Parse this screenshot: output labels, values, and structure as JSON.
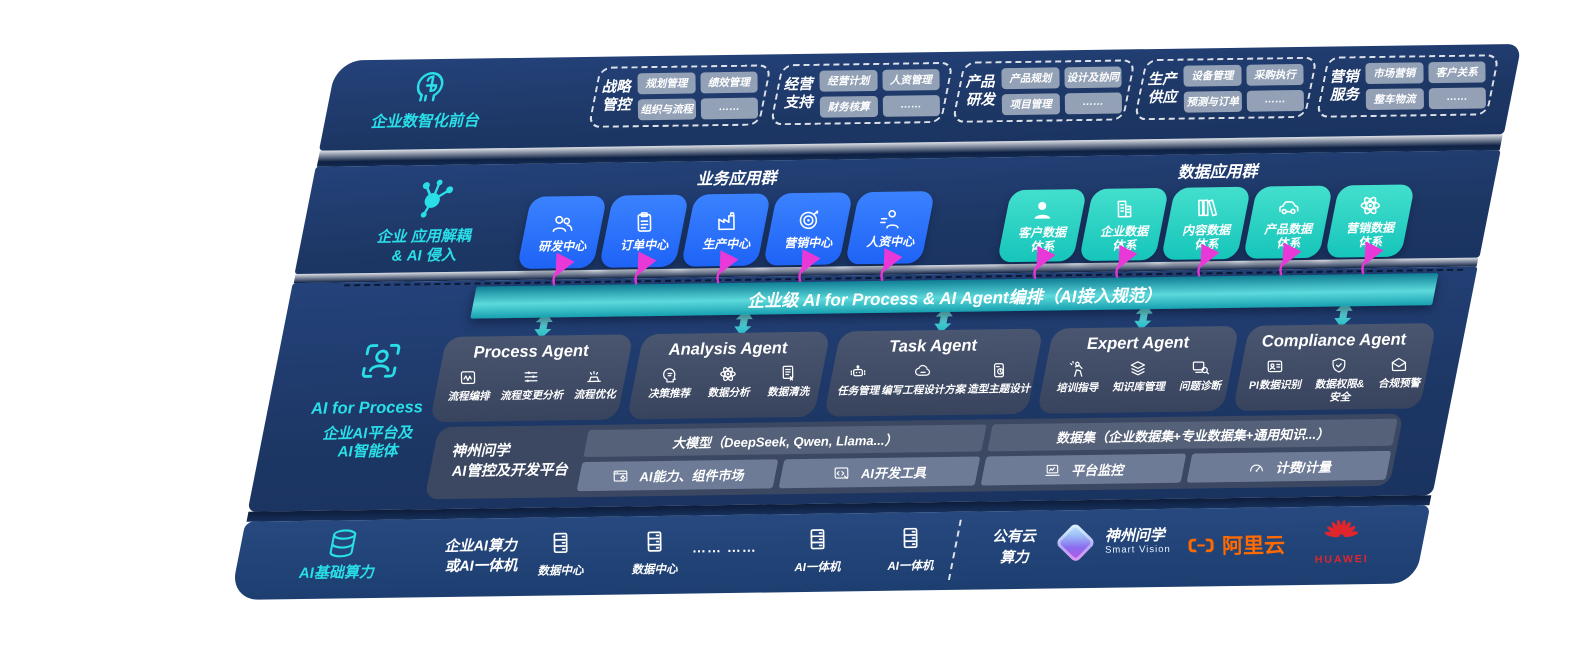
{
  "colors": {
    "panel_navy": "#1d3765",
    "infra_navy": "#1f4173",
    "accent_teal": "#2fd8cf",
    "rail_cyan": "#29dee7",
    "app_blue": "#2470fa",
    "data_teal": "#2ed3c6",
    "magenta": "#e838d8",
    "agent_slate": "#3f4b66",
    "aliyun_orange": "#ff6a00",
    "huawei_red": "#e0252c"
  },
  "rail": {
    "front_office": "企业数智化前台",
    "decouple_line1": "企业 应用解耦",
    "decouple_line2": "& AI 侵入",
    "aiprocess_en": "AI for Process",
    "aiprocess_line2": "企业AI平台及",
    "aiprocess_line3": "AI智能体",
    "compute": "AI基础算力"
  },
  "front_office_groups": [
    {
      "title_lines": [
        "战略",
        "管控"
      ],
      "items": [
        "规划管理",
        "绩效管理",
        "组织与流程",
        "……"
      ]
    },
    {
      "title_lines": [
        "经营",
        "支持"
      ],
      "items": [
        "经营计划",
        "人资管理",
        "财务核算",
        "……"
      ]
    },
    {
      "title_lines": [
        "产品",
        "研发"
      ],
      "items": [
        "产品规划",
        "设计及协同",
        "项目管理",
        "……"
      ]
    },
    {
      "title_lines": [
        "生产",
        "供应"
      ],
      "items": [
        "设备管理",
        "采购执行",
        "预测与订单",
        "……"
      ]
    },
    {
      "title_lines": [
        "营销",
        "服务"
      ],
      "items": [
        "市场营销",
        "客户关系",
        "整车物流",
        "……"
      ]
    }
  ],
  "app_cluster": {
    "title": "业务应用群",
    "boxes": [
      {
        "icon": "people-icon",
        "label": "研发中心"
      },
      {
        "icon": "clipboard-icon",
        "label": "订单中心"
      },
      {
        "icon": "factory-icon",
        "label": "生产中心"
      },
      {
        "icon": "target-icon",
        "label": "营销中心"
      },
      {
        "icon": "running-person-icon",
        "label": "人资中心"
      }
    ]
  },
  "data_cluster": {
    "title": "数据应用群",
    "boxes": [
      {
        "icon": "person-icon",
        "label": "客户数据 体系"
      },
      {
        "icon": "building-icon",
        "label": "企业数据 体系"
      },
      {
        "icon": "books-icon",
        "label": "内容数据 体系"
      },
      {
        "icon": "car-icon",
        "label": "产品数据 体系"
      },
      {
        "icon": "atom-icon",
        "label": "营销数据 体系"
      }
    ]
  },
  "orchestration_bar": "企业级 AI for Process & AI Agent编排（AI接入规范）",
  "agents": [
    {
      "title": "Process Agent",
      "items": [
        {
          "icon": "waveform-icon",
          "label": "流程编排"
        },
        {
          "icon": "flow-nodes-icon",
          "label": "流程变更分析"
        },
        {
          "icon": "sparks-icon",
          "label": "流程优化"
        }
      ]
    },
    {
      "title": "Analysis Agent",
      "items": [
        {
          "icon": "head-profile-icon",
          "label": "决策推荐"
        },
        {
          "icon": "atom-icon",
          "label": "数据分析"
        },
        {
          "icon": "document-icon",
          "label": "数据清洗"
        }
      ]
    },
    {
      "title": "Task Agent",
      "items": [
        {
          "icon": "robot-icon",
          "label": "任务管理"
        },
        {
          "icon": "cloud-icon",
          "label": "编写工程设计方案"
        },
        {
          "icon": "tablet-check-icon",
          "label": "造型主题设计"
        }
      ]
    },
    {
      "title": "Expert Agent",
      "items": [
        {
          "icon": "presenter-icon",
          "label": "培训指导"
        },
        {
          "icon": "layers-icon",
          "label": "知识库管理"
        },
        {
          "icon": "magnifier-screen-icon",
          "label": "问题诊断"
        }
      ]
    },
    {
      "title": "Compliance Agent",
      "items": [
        {
          "icon": "id-card-icon",
          "label": "PI数据识别",
          "wrap": true
        },
        {
          "icon": "shield-check-icon",
          "label": "数据权限& 安全",
          "wrap": true
        },
        {
          "icon": "envelope-icon",
          "label": "合规预警"
        }
      ]
    }
  ],
  "platform": {
    "name_line1": "神州问学",
    "name_line2": "AI管控及开发平台",
    "groups": [
      {
        "header": "大模型（DeepSeek, Qwen, Llama...）",
        "cells": [
          {
            "icon": "window-gear-icon",
            "label": "AI能力、组件市场"
          },
          {
            "icon": "code-window-icon",
            "label": "AI开发工具"
          }
        ]
      },
      {
        "header": "数据集（企业数据集+专业数据集+通用知识...）",
        "cells": [
          {
            "icon": "laptop-chart-icon",
            "label": "平台监控"
          },
          {
            "icon": "gauge-icon",
            "label": "计费/计量"
          }
        ]
      }
    ]
  },
  "infrastructure": {
    "compute_line1": "企业AI算力",
    "compute_line2": "或AI一体机",
    "nodes": [
      {
        "icon": "server-icon",
        "label": "数据中心"
      },
      {
        "icon": "server-icon",
        "label": "数据中心"
      },
      {
        "dots": "…… ……"
      },
      {
        "icon": "server-icon",
        "label": "AI一体机"
      },
      {
        "icon": "server-icon",
        "label": "AI一体机"
      }
    ],
    "public_cloud_line1": "公有云",
    "public_cloud_line2": "算力",
    "logos": {
      "smart_vision_name": "神州问学",
      "smart_vision_sub": "Smart Vision",
      "aliyun": "阿里云",
      "huawei": "HUAWEI"
    }
  }
}
